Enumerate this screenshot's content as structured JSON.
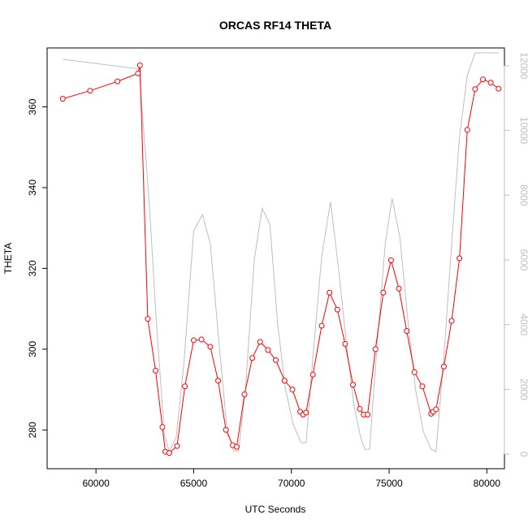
{
  "chart_data": {
    "type": "line",
    "title": "ORCAS RF14 THETA",
    "xlabel": "UTC Seconds",
    "ylabel": "THETA",
    "xlim": [
      57500,
      80900
    ],
    "ylim": [
      270.4,
      374.6
    ],
    "xticks": [
      60000,
      65000,
      70000,
      75000,
      80000
    ],
    "yticks": [
      280,
      300,
      320,
      340,
      360
    ],
    "y2lim": [
      -450,
      12550
    ],
    "y2ticks": [
      0,
      2000,
      4000,
      6000,
      8000,
      10000,
      12000
    ],
    "grid": false,
    "series": [
      {
        "color": "#ff0000",
        "marker": "open-circle",
        "axis": "left",
        "x": [
          58300,
          59700,
          61100,
          62150,
          62250,
          62650,
          63050,
          63400,
          63550,
          63750,
          64150,
          64550,
          65000,
          65400,
          65850,
          66250,
          66650,
          67000,
          67200,
          67600,
          68000,
          68400,
          68800,
          69200,
          69650,
          70050,
          70450,
          70600,
          70750,
          71100,
          71550,
          71950,
          72350,
          72750,
          73150,
          73500,
          73700,
          73900,
          74300,
          74700,
          75100,
          75500,
          75900,
          76300,
          76700,
          77150,
          77250,
          77400,
          77800,
          78200,
          78600,
          79000,
          79400,
          79800,
          80200,
          80600
        ],
        "y": [
          362,
          364,
          366.3,
          368.3,
          370.3,
          307.5,
          294.7,
          280.7,
          274.6,
          274.3,
          276,
          290.8,
          302.2,
          302.4,
          300.6,
          292.2,
          280,
          276.2,
          275.8,
          288.8,
          297.8,
          301.8,
          299.8,
          297.3,
          292.2,
          290,
          284.5,
          283.8,
          284.3,
          293.7,
          305.8,
          314,
          309.8,
          301.3,
          291.2,
          285.2,
          283.8,
          283.8,
          300,
          314,
          322,
          315,
          304.5,
          294.3,
          290.8,
          284,
          284.5,
          285.1,
          295.7,
          307,
          322.5,
          354.3,
          364.4,
          366.8,
          366,
          364.5
        ]
      },
      {
        "color": "#bebebe",
        "marker": "none",
        "axis": "right",
        "x": [
          58300,
          62200,
          62700,
          63100,
          63500,
          63750,
          64100,
          64500,
          65000,
          65450,
          65850,
          66300,
          66700,
          67050,
          67300,
          67650,
          68100,
          68500,
          68900,
          69300,
          69700,
          70100,
          70500,
          70750,
          71100,
          71550,
          72000,
          72400,
          72800,
          73200,
          73550,
          73750,
          74000,
          74400,
          74800,
          75150,
          75550,
          75950,
          76350,
          76750,
          77150,
          77400,
          77800,
          78200,
          78600,
          79000,
          79400,
          80600
        ],
        "y": [
          12200,
          11900,
          8000,
          4000,
          600,
          80,
          500,
          2800,
          6900,
          7400,
          6500,
          3400,
          800,
          100,
          100,
          2000,
          6000,
          7600,
          7100,
          4000,
          2000,
          900,
          350,
          350,
          3000,
          6100,
          7800,
          5800,
          3500,
          1500,
          500,
          150,
          150,
          3500,
          6500,
          7900,
          6700,
          4200,
          2000,
          700,
          150,
          80,
          3000,
          6500,
          9800,
          11700,
          12400,
          12400
        ]
      }
    ]
  }
}
